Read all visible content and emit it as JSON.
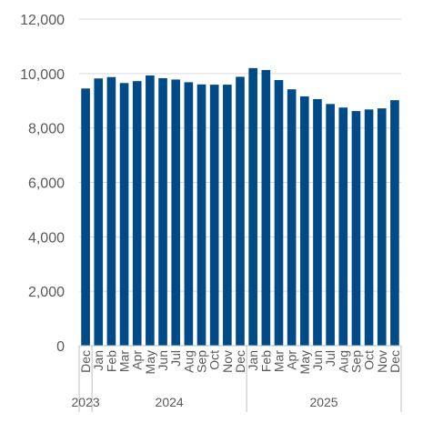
{
  "chart_data": {
    "type": "bar",
    "title": "",
    "xlabel": "",
    "ylabel": "",
    "ylim": [
      0,
      12000
    ],
    "yticks": [
      "0",
      "2,000",
      "4,000",
      "6,000",
      "8,000",
      "10,000",
      "12,000"
    ],
    "grid": true,
    "legend": "none",
    "bar_color": "#004b87",
    "categories": [
      "Dec",
      "Jan",
      "Feb",
      "Mar",
      "Apr",
      "May",
      "Jun",
      "Jul",
      "Aug",
      "Sep",
      "Oct",
      "Nov",
      "Dec",
      "Jan",
      "Feb",
      "Mar",
      "Apr",
      "May",
      "Jun",
      "Jul",
      "Aug",
      "Sep",
      "Oct",
      "Nov",
      "Dec"
    ],
    "values": [
      9450,
      9820,
      9870,
      9650,
      9720,
      9930,
      9830,
      9780,
      9680,
      9600,
      9590,
      9590,
      9880,
      10200,
      10130,
      9760,
      9420,
      9160,
      9060,
      8880,
      8750,
      8620,
      8680,
      8720,
      9020
    ],
    "groups": [
      {
        "label": "2023",
        "start": 0,
        "end": 0
      },
      {
        "label": "2024",
        "start": 1,
        "end": 12
      },
      {
        "label": "2025",
        "start": 13,
        "end": 24
      }
    ]
  }
}
